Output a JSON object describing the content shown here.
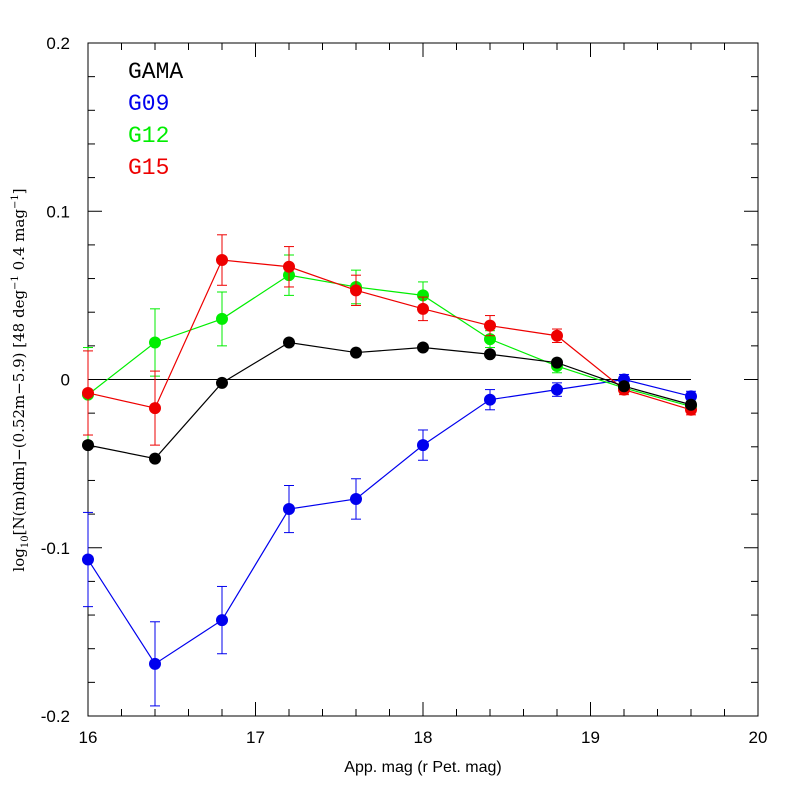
{
  "chart_data": {
    "type": "line",
    "title": "",
    "xlabel": "App. mag (r Pet. mag)",
    "ylabel_parts": [
      "log",
      "10",
      "[N(m)dm]−(0.52m−5.9) [48 deg",
      "−1",
      " 0.4 mag",
      "−1",
      "]"
    ],
    "xlim": [
      16,
      20
    ],
    "ylim": [
      -0.2,
      0.2
    ],
    "x_ticks": [
      16,
      17,
      18,
      19,
      20
    ],
    "x_tick_labels": [
      "16",
      "17",
      "18",
      "19",
      "20"
    ],
    "y_ticks": [
      -0.2,
      -0.1,
      0,
      0.1,
      0.2
    ],
    "y_tick_labels": [
      "-0.2",
      "-0.1",
      "0",
      "0.1",
      "0.2"
    ],
    "reference_line": {
      "y": 0,
      "x_range": [
        16,
        19.6
      ]
    },
    "grid": false,
    "legend_position": "top-left",
    "series": [
      {
        "name": "GAMA",
        "color": "#000000",
        "x": [
          16.0,
          16.4,
          16.8,
          17.2,
          17.6,
          18.0,
          18.4,
          18.8,
          19.2,
          19.6
        ],
        "y": [
          -0.039,
          -0.047,
          -0.002,
          0.022,
          0.016,
          0.019,
          0.015,
          0.01,
          -0.004,
          -0.015
        ],
        "err": [
          0.002,
          0.002,
          0.002,
          0.002,
          0.002,
          0.002,
          0.002,
          0.002,
          0.002,
          0.002
        ]
      },
      {
        "name": "G09",
        "color": "#0000ee",
        "x": [
          16.0,
          16.4,
          16.8,
          17.2,
          17.6,
          18.0,
          18.4,
          18.8,
          19.2,
          19.6
        ],
        "y": [
          -0.107,
          -0.169,
          -0.143,
          -0.077,
          -0.071,
          -0.039,
          -0.012,
          -0.006,
          0.0,
          -0.01
        ],
        "err": [
          0.028,
          0.025,
          0.02,
          0.014,
          0.012,
          0.009,
          0.006,
          0.004,
          0.003,
          0.003
        ]
      },
      {
        "name": "G12",
        "color": "#00ee00",
        "x": [
          16.0,
          16.4,
          16.8,
          17.2,
          17.6,
          18.0,
          18.4,
          18.8,
          19.2,
          19.6
        ],
        "y": [
          -0.009,
          0.022,
          0.036,
          0.062,
          0.055,
          0.05,
          0.024,
          0.008,
          -0.005,
          -0.016
        ],
        "err": [
          0.028,
          0.02,
          0.016,
          0.012,
          0.01,
          0.008,
          0.005,
          0.004,
          0.003,
          0.003
        ]
      },
      {
        "name": "G15",
        "color": "#ee0000",
        "x": [
          16.0,
          16.4,
          16.8,
          17.2,
          17.6,
          18.0,
          18.4,
          18.8,
          19.2,
          19.6
        ],
        "y": [
          -0.008,
          -0.017,
          0.071,
          0.067,
          0.053,
          0.042,
          0.032,
          0.026,
          -0.006,
          -0.018
        ],
        "err": [
          0.025,
          0.022,
          0.015,
          0.012,
          0.009,
          0.007,
          0.006,
          0.004,
          0.003,
          0.003
        ]
      }
    ]
  }
}
